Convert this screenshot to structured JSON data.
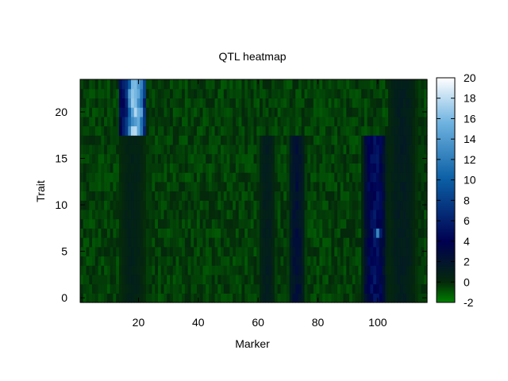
{
  "chart_data": {
    "type": "heatmap",
    "title": "QTL heatmap",
    "xlabel": "Marker",
    "ylabel": "Trait",
    "xlim": [
      1,
      116
    ],
    "ylim": [
      0,
      23
    ],
    "xticks": [
      20,
      40,
      60,
      80,
      100
    ],
    "yticks": [
      0,
      5,
      10,
      15,
      20
    ],
    "colorbar": {
      "range": [
        -2,
        20
      ],
      "ticks": [
        -2,
        0,
        2,
        4,
        6,
        8,
        10,
        12,
        14,
        16,
        18,
        20
      ],
      "colors": [
        "#008000",
        "#04290a",
        "#000050",
        "#0b5fa5",
        "#6fb3e0",
        "#ffffff"
      ]
    },
    "baseline_value": -0.5,
    "hotspots": [
      {
        "traits": [
          18,
          23
        ],
        "markers": [
          14,
          22
        ],
        "peak_marker": 19,
        "peak_value": 20
      },
      {
        "traits": [
          18,
          23
        ],
        "markers": [
          14,
          22
        ],
        "peak_marker": 16,
        "peak_value": 7
      },
      {
        "traits": [
          0,
          17
        ],
        "markers": [
          95,
          104
        ],
        "peak_marker": 99,
        "peak_value": 6
      },
      {
        "traits": [
          7,
          7
        ],
        "markers": [
          98,
          101
        ],
        "peak_marker": 100,
        "peak_value": 13
      },
      {
        "traits": [
          0,
          17
        ],
        "markers": [
          70,
          76
        ],
        "peak_marker": 73,
        "peak_value": 3
      },
      {
        "traits": [
          0,
          17
        ],
        "markers": [
          60,
          66
        ],
        "peak_marker": 63,
        "peak_value": 1.5
      },
      {
        "traits": [
          0,
          23
        ],
        "markers": [
          104,
          115
        ],
        "peak_marker": 108,
        "peak_value": 1.5
      },
      {
        "traits": [
          0,
          17
        ],
        "markers": [
          14,
          24
        ],
        "peak_marker": 18,
        "peak_value": 1
      }
    ]
  }
}
